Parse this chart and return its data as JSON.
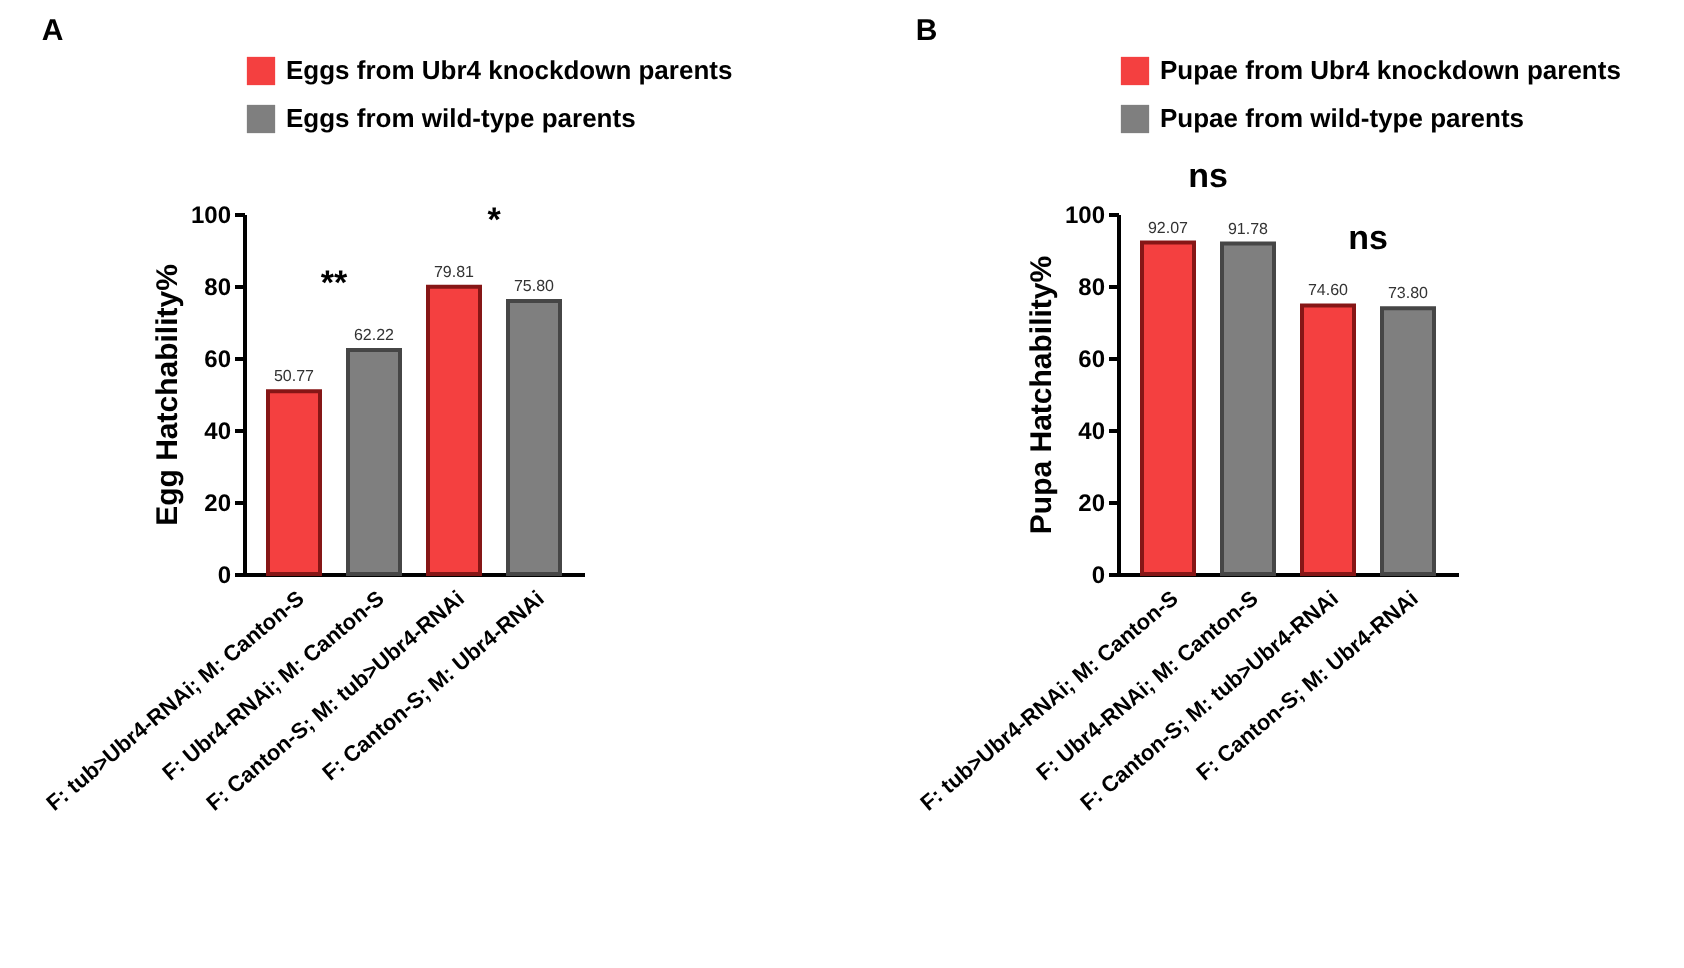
{
  "chart_data": [
    {
      "type": "bar",
      "title": "A",
      "ylabel": "Egg Hatchability%",
      "categories": [
        "F: tub>Ubr4-RNAi; M: Canton-S",
        "F: Ubr4-RNAi; M: Canton-S",
        "F: Canton-S; M: tub>Ubr4-RNAi",
        "F: Canton-S; M: Ubr4-RNAi"
      ],
      "series": [
        {
          "name": "Eggs from Ubr4 knockdown parents",
          "color": "#f44040",
          "values": [
            50.77,
            null,
            79.81,
            null
          ],
          "value_labels": [
            "50.77",
            null,
            "79.81",
            null
          ]
        },
        {
          "name": "Eggs from wild-type parents",
          "color": "#7f7f7f",
          "values": [
            null,
            62.22,
            null,
            75.8
          ],
          "value_labels": [
            null,
            "62.22",
            null,
            "75.80"
          ]
        }
      ],
      "ylim": [
        0,
        100
      ],
      "yticks": [
        0,
        20,
        40,
        60,
        80,
        100
      ],
      "legend": "top",
      "grid": false,
      "annotations": [
        "**",
        "*"
      ]
    },
    {
      "type": "bar",
      "title": "B",
      "ylabel": "Pupa Hatchability%",
      "categories": [
        "F: tub>Ubr4-RNAi; M: Canton-S",
        "F: Ubr4-RNAi; M: Canton-S",
        "F: Canton-S; M: tub>Ubr4-RNAi",
        "F: Canton-S; M: Ubr4-RNAi"
      ],
      "series": [
        {
          "name": "Pupae from Ubr4 knockdown parents",
          "color": "#f44040",
          "values": [
            92.07,
            null,
            74.6,
            null
          ],
          "value_labels": [
            "92.07",
            null,
            "74.60",
            null
          ]
        },
        {
          "name": "Pupae from wild-type parents",
          "color": "#7f7f7f",
          "values": [
            null,
            91.78,
            null,
            73.8
          ],
          "value_labels": [
            null,
            "91.78",
            null,
            "73.80"
          ]
        }
      ],
      "ylim": [
        0,
        100
      ],
      "yticks": [
        0,
        20,
        40,
        60,
        80,
        100
      ],
      "legend": "top",
      "grid": false,
      "annotations": [
        "ns",
        "ns"
      ]
    }
  ]
}
